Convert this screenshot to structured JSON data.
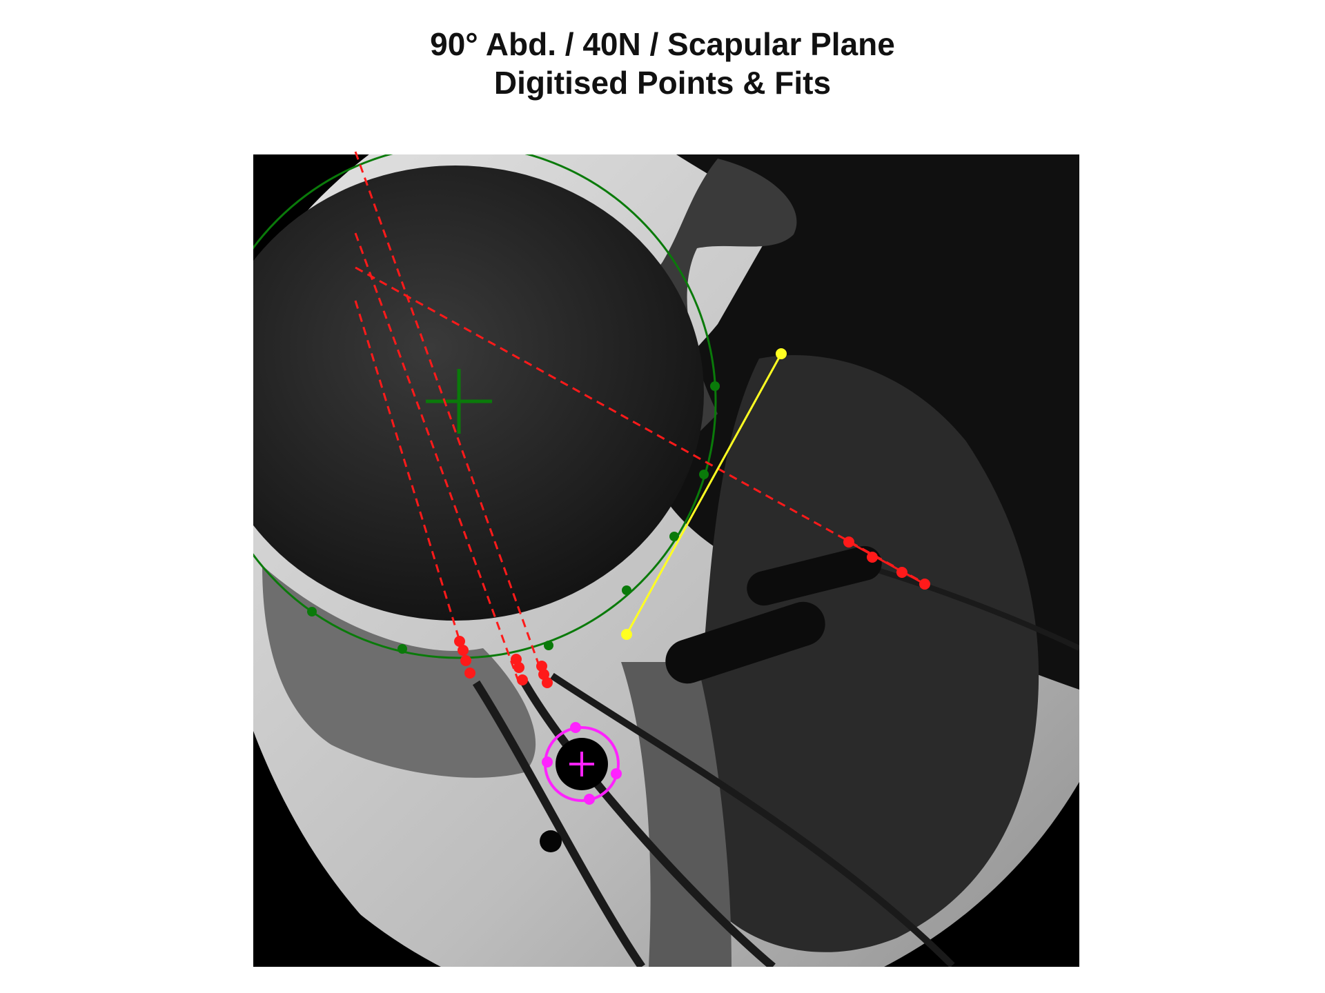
{
  "figure": {
    "title_line1": "90° Abd. / 40N / Scapular Plane",
    "title_line2": "Digitised Points & Fits"
  },
  "colors": {
    "humeral_head_fit": "#0a7a0a",
    "shaft_axis_lines": "#ff1a1a",
    "glenoid_line": "#ffff22",
    "marker_fit": "#ff22ff",
    "background": "#ffffff",
    "image_frame": "#000000"
  },
  "overlays": {
    "humeral_head_circle": "green circle fit with centre cross and digitised points",
    "shaft_axes": "red dashed fitted lines with digitised points",
    "glenoid": "yellow line between two points",
    "marker_bead": "magenta circle fit with centre cross and digitised points"
  }
}
